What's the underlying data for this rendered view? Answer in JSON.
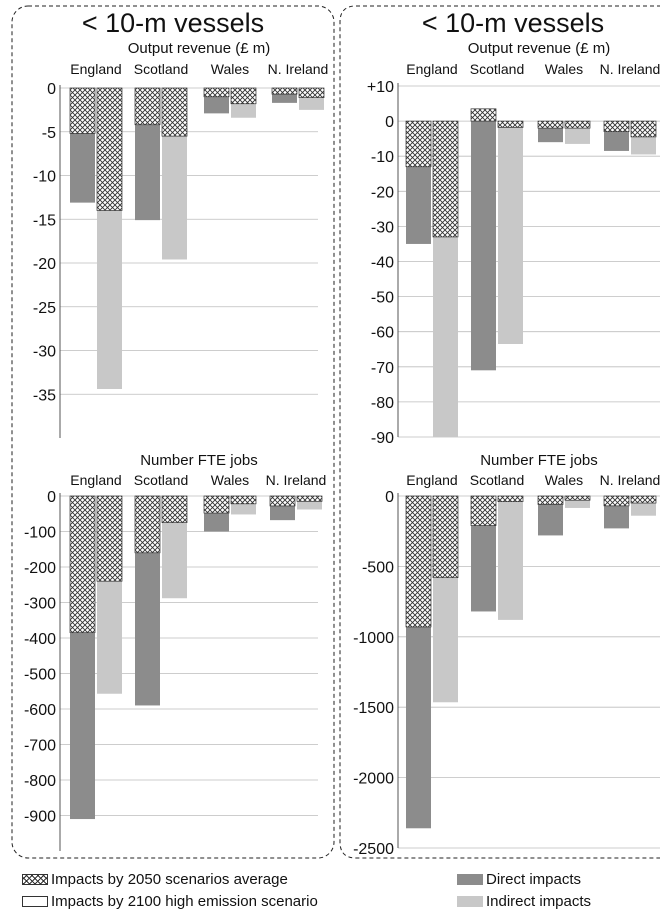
{
  "legend": {
    "avg2050": "Impacts by 2050 scenarios average",
    "high2100": "Impacts by 2100 high emission scenario",
    "direct": "Direct impacts",
    "indirect": "Indirect impacts"
  },
  "colors": {
    "direct": "#8c8c8c",
    "indirect": "#c8c8c8",
    "hatch": "#333333"
  },
  "panels": [
    {
      "title": "< 10-m vessels"
    },
    {
      "title": "< 10-m vessels"
    }
  ],
  "chart_data": [
    {
      "type": "bar",
      "title": "Output revenue (£ m)",
      "categories": [
        "England",
        "Scotland",
        "Wales",
        "N. Ireland"
      ],
      "ylim": [
        -40,
        0
      ],
      "yticks": [
        "0",
        "-5",
        "-10",
        "-15",
        "-20",
        "-25",
        "-30",
        "-35"
      ],
      "ytick_values": [
        0,
        -5,
        -10,
        -15,
        -20,
        -25,
        -30,
        -35
      ],
      "series": [
        {
          "name": "Direct impacts",
          "hatched_2050_avg": [
            -5.2,
            -4.2,
            -1.0,
            -0.7
          ],
          "total_2100_high": [
            -13.1,
            -15.1,
            -2.9,
            -1.7
          ]
        },
        {
          "name": "Indirect impacts",
          "hatched_2050_avg": [
            -14.0,
            -5.5,
            -1.8,
            -1.1
          ],
          "total_2100_high": [
            -34.4,
            -19.6,
            -3.4,
            -2.5
          ]
        }
      ]
    },
    {
      "type": "bar",
      "title": "Number FTE jobs",
      "categories": [
        "England",
        "Scotland",
        "Wales",
        "N. Ireland"
      ],
      "ylim": [
        -1000,
        0
      ],
      "yticks": [
        "0",
        "-100",
        "-200",
        "-300",
        "-400",
        "-500",
        "-600",
        "-700",
        "-800",
        "-900"
      ],
      "ytick_values": [
        0,
        -100,
        -200,
        -300,
        -400,
        -500,
        -600,
        -700,
        -800,
        -900
      ],
      "series": [
        {
          "name": "Direct impacts",
          "hatched_2050_avg": [
            -385,
            -160,
            -48,
            -28
          ],
          "total_2100_high": [
            -910,
            -590,
            -100,
            -68
          ]
        },
        {
          "name": "Indirect impacts",
          "hatched_2050_avg": [
            -240,
            -75,
            -22,
            -15
          ],
          "total_2100_high": [
            -557,
            -288,
            -52,
            -38
          ]
        }
      ]
    },
    {
      "type": "bar",
      "title": "Output revenue (£ m)",
      "categories": [
        "England",
        "Scotland",
        "Wales",
        "N. Ireland"
      ],
      "ylim": [
        -90,
        10
      ],
      "yticks": [
        "+10",
        "0",
        "-10",
        "-20",
        "-30",
        "-40",
        "-50",
        "-60",
        "-70",
        "-80",
        "-90"
      ],
      "ytick_values": [
        10,
        0,
        -10,
        -20,
        -30,
        -40,
        -50,
        -60,
        -70,
        -80,
        -90
      ],
      "series": [
        {
          "name": "Direct impacts",
          "hatched_2050_avg": [
            -13.0,
            3.5,
            -2.0,
            -3.0
          ],
          "total_2100_high": [
            -35.0,
            -71.0,
            -6.0,
            -8.5
          ]
        },
        {
          "name": "Indirect impacts",
          "hatched_2050_avg": [
            -33.0,
            -1.8,
            -2.0,
            -4.5
          ],
          "total_2100_high": [
            -90.0,
            -63.5,
            -6.5,
            -9.5
          ]
        }
      ]
    },
    {
      "type": "bar",
      "title": "Number FTE jobs",
      "categories": [
        "England",
        "Scotland",
        "Wales",
        "N. Ireland"
      ],
      "ylim": [
        -2500,
        0
      ],
      "yticks": [
        "0",
        "-500",
        "-1000",
        "-1500",
        "-2000",
        "-2500"
      ],
      "ytick_values": [
        0,
        -500,
        -1000,
        -1500,
        -2000,
        -2500
      ],
      "series": [
        {
          "name": "Direct impacts",
          "hatched_2050_avg": [
            -930,
            -210,
            -60,
            -70
          ],
          "total_2100_high": [
            -2360,
            -820,
            -280,
            -230
          ]
        },
        {
          "name": "Indirect impacts",
          "hatched_2050_avg": [
            -580,
            -40,
            -30,
            -50
          ],
          "total_2100_high": [
            -1465,
            -880,
            -85,
            -140
          ]
        }
      ]
    }
  ]
}
